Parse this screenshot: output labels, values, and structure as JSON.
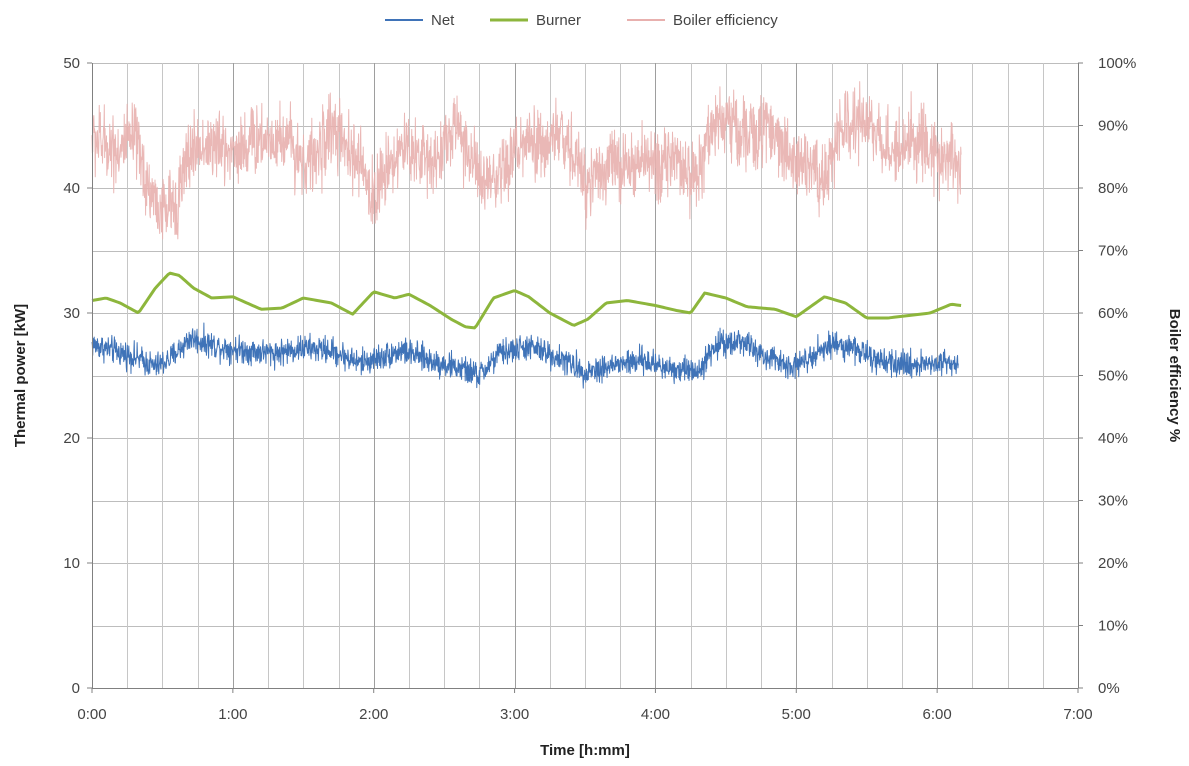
{
  "chart_data": {
    "type": "line",
    "xlabel": "Time [h:mm]",
    "ylabel": "Thermal power [kW]",
    "y2label": "Boiler efficiency %",
    "x_unit": "hours",
    "xlim": [
      0,
      7
    ],
    "ylim": [
      0,
      50
    ],
    "y2lim": [
      0,
      100
    ],
    "grid": true,
    "legend_position": "top",
    "x_tick_values": [
      0,
      1,
      2,
      3,
      4,
      5,
      6,
      7
    ],
    "x_tick_labels": [
      "0:00",
      "1:00",
      "2:00",
      "3:00",
      "4:00",
      "5:00",
      "6:00",
      "7:00"
    ],
    "y_tick_values": [
      0,
      10,
      20,
      30,
      40,
      50
    ],
    "y_tick_labels": [
      "0",
      "10",
      "20",
      "30",
      "40",
      "50"
    ],
    "y2_tick_values": [
      0,
      10,
      20,
      30,
      40,
      50,
      60,
      70,
      80,
      90,
      100
    ],
    "y2_tick_labels": [
      "0%",
      "10%",
      "20%",
      "30%",
      "40%",
      "50%",
      "60%",
      "70%",
      "80%",
      "90%",
      "100%"
    ],
    "series": [
      {
        "name": "Net",
        "axis": "left",
        "color": "#3f73b8",
        "noise": 1.4,
        "x": [
          0.0,
          0.15,
          0.3,
          0.45,
          0.55,
          0.7,
          0.9,
          1.1,
          1.3,
          1.5,
          1.7,
          1.9,
          2.0,
          2.2,
          2.4,
          2.6,
          2.75,
          2.9,
          3.1,
          3.3,
          3.5,
          3.7,
          3.9,
          4.1,
          4.3,
          4.45,
          4.6,
          4.8,
          5.0,
          5.15,
          5.3,
          5.45,
          5.6,
          5.8,
          6.0,
          6.15
        ],
        "values": [
          27.5,
          27.0,
          26.5,
          25.7,
          26.3,
          28.0,
          27.3,
          27.0,
          26.8,
          27.2,
          27.0,
          26.0,
          26.3,
          27.0,
          26.2,
          25.6,
          25.0,
          26.8,
          27.3,
          26.5,
          25.3,
          25.8,
          26.2,
          25.6,
          25.4,
          27.6,
          27.8,
          26.3,
          25.8,
          27.0,
          27.6,
          27.0,
          25.9,
          25.9,
          26.0,
          26.1
        ]
      },
      {
        "name": "Burner",
        "axis": "left",
        "color": "#8db63c",
        "noise": 0.15,
        "x": [
          0.0,
          0.1,
          0.2,
          0.33,
          0.45,
          0.55,
          0.62,
          0.72,
          0.85,
          1.0,
          1.1,
          1.2,
          1.35,
          1.5,
          1.7,
          1.85,
          2.0,
          2.15,
          2.25,
          2.4,
          2.55,
          2.65,
          2.72,
          2.85,
          3.0,
          3.1,
          3.25,
          3.42,
          3.52,
          3.65,
          3.8,
          4.0,
          4.15,
          4.25,
          4.35,
          4.5,
          4.65,
          4.85,
          5.0,
          5.1,
          5.2,
          5.35,
          5.5,
          5.65,
          5.8,
          5.95,
          6.1,
          6.17
        ],
        "values": [
          31.0,
          31.2,
          30.8,
          30.0,
          32.0,
          33.2,
          33.0,
          32.0,
          31.2,
          31.3,
          30.8,
          30.3,
          30.4,
          31.2,
          30.8,
          29.9,
          31.7,
          31.2,
          31.5,
          30.6,
          29.5,
          28.9,
          28.8,
          31.2,
          31.8,
          31.3,
          30.0,
          29.0,
          29.5,
          30.8,
          31.0,
          30.6,
          30.2,
          30.0,
          31.6,
          31.2,
          30.5,
          30.3,
          29.7,
          30.5,
          31.3,
          30.8,
          29.6,
          29.6,
          29.8,
          30.0,
          30.7,
          30.6
        ]
      },
      {
        "name": "Boiler efficiency",
        "axis": "right",
        "color": "#e8b0ae",
        "noise": 7.5,
        "x": [
          0.0,
          0.1,
          0.2,
          0.3,
          0.4,
          0.5,
          0.6,
          0.7,
          0.8,
          1.0,
          1.2,
          1.4,
          1.5,
          1.6,
          1.7,
          1.8,
          1.9,
          2.0,
          2.1,
          2.2,
          2.3,
          2.4,
          2.5,
          2.6,
          2.7,
          2.8,
          2.9,
          3.0,
          3.1,
          3.2,
          3.3,
          3.4,
          3.5,
          3.6,
          3.7,
          3.8,
          3.9,
          4.0,
          4.1,
          4.2,
          4.3,
          4.4,
          4.5,
          4.6,
          4.7,
          4.8,
          4.9,
          5.0,
          5.1,
          5.2,
          5.3,
          5.4,
          5.5,
          5.6,
          5.7,
          5.8,
          5.9,
          6.0,
          6.1,
          6.17
        ],
        "values": [
          88,
          87,
          86,
          88,
          80,
          76,
          78,
          86,
          87,
          86,
          88,
          88,
          84,
          85,
          90,
          86,
          84,
          78,
          84,
          86,
          86,
          84,
          87,
          90,
          84,
          80,
          81,
          86,
          87,
          86,
          89,
          86,
          81,
          83,
          84,
          83,
          84,
          84,
          85,
          82,
          82,
          90,
          91,
          89,
          88,
          90,
          86,
          85,
          84,
          81,
          88,
          90,
          91,
          88,
          86,
          88,
          87,
          84,
          86,
          82
        ]
      }
    ]
  }
}
